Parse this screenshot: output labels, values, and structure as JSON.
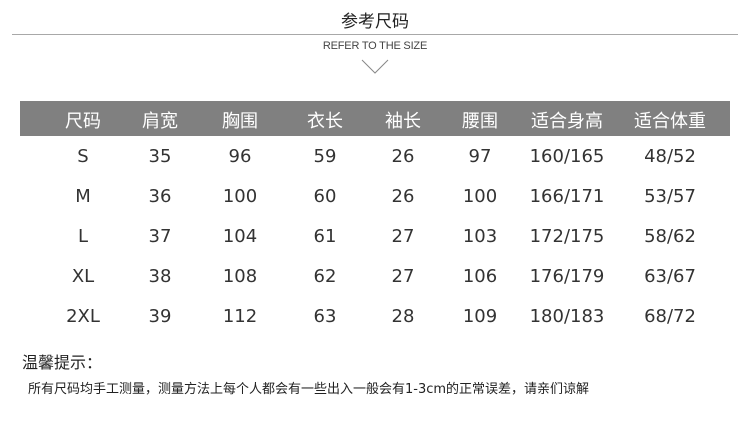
{
  "title": "参考尺码",
  "subtitle": "REFER TO THE SIZE",
  "colors": {
    "header_bg": "#808080",
    "header_text": "#ffffff",
    "rule": "#a8a8a8"
  },
  "table": {
    "headers": [
      "尺码",
      "肩宽",
      "胸围",
      "衣长",
      "袖长",
      "腰围",
      "适合身高",
      "适合体重"
    ],
    "rows": [
      [
        "S",
        "35",
        "96",
        "59",
        "26",
        "97",
        "160/165",
        "48/52"
      ],
      [
        "M",
        "36",
        "100",
        "60",
        "26",
        "100",
        "166/171",
        "53/57"
      ],
      [
        "L",
        "37",
        "104",
        "61",
        "27",
        "103",
        "172/175",
        "58/62"
      ],
      [
        "XL",
        "38",
        "108",
        "62",
        "27",
        "106",
        "176/179",
        "63/67"
      ],
      [
        "2XL",
        "39",
        "112",
        "63",
        "28",
        "109",
        "180/183",
        "68/72"
      ]
    ]
  },
  "notice": {
    "heading": "温馨提示：",
    "text": "所有尺码均手工测量，测量方法上每个人都会有一些出入一般会有1-3cm的正常误差，请亲们谅解"
  }
}
